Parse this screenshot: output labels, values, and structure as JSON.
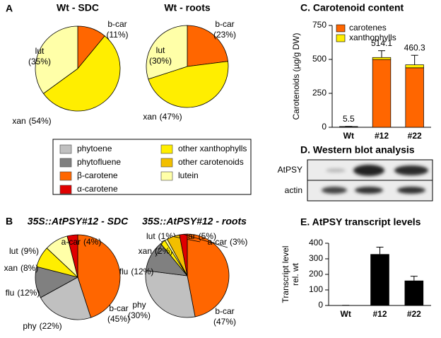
{
  "panel_labels": {
    "a": "A",
    "b": "B"
  },
  "legend": {
    "items": [
      {
        "name": "phytoene",
        "color": "#c0c0c0"
      },
      {
        "name": "phytofluene",
        "color": "#808080"
      },
      {
        "name": "β-carotene",
        "color": "#ff6600"
      },
      {
        "name": "α-carotene",
        "color": "#e00000"
      },
      {
        "name": "other xanthophylls",
        "color": "#ffee00"
      },
      {
        "name": "other carotenoids",
        "color": "#f2bf00"
      },
      {
        "name": "lutein",
        "color": "#ffffa8"
      }
    ]
  },
  "western_blot": {
    "title": "D. Western blot analysis",
    "rows": [
      "AtPSY",
      "actin"
    ]
  },
  "chart_data": [
    {
      "type": "pie",
      "title": "Wt - SDC",
      "categories": [
        "b-car",
        "xan",
        "lut"
      ],
      "values": [
        11,
        54,
        35
      ],
      "value_labels": [
        "(11%)",
        "(54%)",
        "(35%)"
      ],
      "colors": [
        "#ff6600",
        "#ffee00",
        "#ffffa8"
      ]
    },
    {
      "type": "pie",
      "title": "Wt - roots",
      "categories": [
        "b-car",
        "xan",
        "lut"
      ],
      "values": [
        23,
        47,
        30
      ],
      "value_labels": [
        "(23%)",
        "(47%)",
        "(30%)"
      ],
      "colors": [
        "#ff6600",
        "#ffee00",
        "#ffffa8"
      ]
    },
    {
      "type": "pie",
      "title": "35S::AtPSY#12 - SDC",
      "categories": [
        "b-car",
        "phy",
        "flu",
        "xan",
        "lut",
        "a-car"
      ],
      "values": [
        45,
        22,
        12,
        8,
        9,
        4
      ],
      "value_labels": [
        "(45%)",
        "(22%)",
        "(12%)",
        "(8%)",
        "(9%)",
        "(4%)"
      ],
      "colors": [
        "#ff6600",
        "#c0c0c0",
        "#808080",
        "#ffee00",
        "#ffffa8",
        "#e00000"
      ]
    },
    {
      "type": "pie",
      "title": "35S::AtPSY#12 - roots",
      "categories": [
        "b-car",
        "phy",
        "flu",
        "xan",
        "lut",
        "car",
        "a-car"
      ],
      "values": [
        47,
        30,
        12,
        2,
        1,
        5,
        3
      ],
      "value_labels": [
        "(47%)",
        "(30%)",
        "(12%)",
        "(2%)",
        "(1%)",
        "(5%)",
        "(3%)"
      ],
      "colors": [
        "#ff6600",
        "#c0c0c0",
        "#808080",
        "#ffee00",
        "#ffffa8",
        "#f2bf00",
        "#e00000"
      ]
    },
    {
      "type": "stacked_bar",
      "title": "C. Carotenoid content",
      "ylabel": "Carotenoids (µg/g DW)",
      "categories": [
        "Wt",
        "#12",
        "#22"
      ],
      "series": [
        {
          "name": "carotenes",
          "color": "#ff6600",
          "values": [
            3.5,
            499.1,
            438.3
          ]
        },
        {
          "name": "xanthophylls",
          "color": "#ffee00",
          "values": [
            2,
            15,
            22
          ]
        }
      ],
      "totals": [
        5.5,
        514.1,
        460.3
      ],
      "errors": [
        1,
        50,
        70
      ],
      "ylim": [
        0,
        750
      ],
      "yticks": [
        0,
        250,
        500,
        750
      ],
      "legend": "upper left"
    },
    {
      "type": "bar",
      "title": "E. AtPSY transcript levels",
      "ylabel": [
        "Transcript level",
        "rel. wt"
      ],
      "categories": [
        "Wt",
        "#12",
        "#22"
      ],
      "values": [
        1,
        330,
        160
      ],
      "errors": [
        0,
        45,
        28
      ],
      "color": "#000000",
      "ylim": [
        0,
        400
      ],
      "yticks": [
        0,
        100,
        200,
        300,
        400
      ]
    }
  ]
}
